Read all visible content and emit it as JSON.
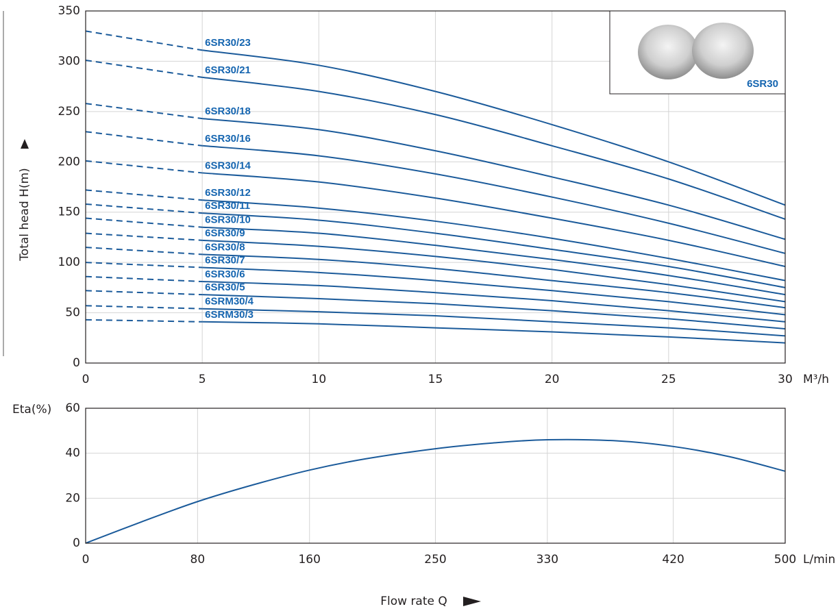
{
  "chart_data": [
    {
      "type": "line",
      "ylabel": "Total head H(m)",
      "xunit": "M³/h",
      "inset_label": "6SR30",
      "x": [
        0,
        5,
        10,
        15,
        20,
        25,
        30
      ],
      "xlim": [
        0,
        30
      ],
      "xticks": [
        0,
        5,
        10,
        15,
        20,
        25,
        30
      ],
      "ylim": [
        0,
        350
      ],
      "yticks": [
        0,
        50,
        100,
        150,
        200,
        250,
        300,
        350
      ],
      "grid": true,
      "series": [
        {
          "name": "6SR30/23",
          "color": "#1a5a9a",
          "values": [
            330,
            311,
            296,
            270,
            237,
            200,
            157
          ]
        },
        {
          "name": "6SR30/21",
          "color": "#1a5a9a",
          "values": [
            301,
            284,
            270,
            247,
            216,
            183,
            143
          ]
        },
        {
          "name": "6SR30/18",
          "color": "#1a5a9a",
          "values": [
            258,
            243,
            232,
            211,
            185,
            157,
            123
          ]
        },
        {
          "name": "6SR30/16",
          "color": "#1a5a9a",
          "values": [
            230,
            216,
            206,
            188,
            165,
            139,
            109
          ]
        },
        {
          "name": "6SR30/14",
          "color": "#1a5a9a",
          "values": [
            201,
            189,
            180,
            164,
            144,
            122,
            96
          ]
        },
        {
          "name": "6SR30/12",
          "color": "#1a5a9a",
          "values": [
            172,
            162,
            154,
            141,
            124,
            104,
            82
          ]
        },
        {
          "name": "6SR30/11",
          "color": "#1a5a9a",
          "values": [
            158,
            149,
            142,
            129,
            113,
            96,
            75
          ]
        },
        {
          "name": "6SR30/10",
          "color": "#1a5a9a",
          "values": [
            144,
            135,
            129,
            117,
            103,
            87,
            68
          ]
        },
        {
          "name": "6SR30/9",
          "color": "#1a5a9a",
          "values": [
            129,
            122,
            116,
            106,
            93,
            78,
            61
          ]
        },
        {
          "name": "6SR30/8",
          "color": "#1a5a9a",
          "values": [
            115,
            108,
            103,
            94,
            82,
            70,
            55
          ]
        },
        {
          "name": "6SR30/7",
          "color": "#1a5a9a",
          "values": [
            100,
            95,
            90,
            82,
            72,
            61,
            48
          ]
        },
        {
          "name": "6SR30/6",
          "color": "#1a5a9a",
          "values": [
            86,
            81,
            77,
            70,
            62,
            52,
            41
          ]
        },
        {
          "name": "6SR30/5",
          "color": "#1a5a9a",
          "values": [
            72,
            68,
            64,
            59,
            52,
            44,
            34
          ]
        },
        {
          "name": "6SRM30/4",
          "color": "#1a5a9a",
          "values": [
            57,
            54,
            51,
            47,
            41,
            35,
            27
          ]
        },
        {
          "name": "6SRM30/3",
          "color": "#1a5a9a",
          "values": [
            43,
            41,
            39,
            35,
            31,
            26,
            20
          ]
        }
      ]
    },
    {
      "type": "line",
      "ylabel": "Eta(%)",
      "xunit": "L/min",
      "xlabel": "Flow rate Q",
      "x": [
        0,
        40,
        80,
        120,
        160,
        200,
        250,
        290,
        330,
        380,
        420,
        460,
        500
      ],
      "values": [
        0,
        9.5,
        18.5,
        26,
        32.5,
        37.5,
        42,
        44.5,
        46,
        45.5,
        43,
        38.5,
        32
      ],
      "color": "#1a5a9a",
      "xlim": [
        0,
        500
      ],
      "xticks": [
        0,
        80,
        160,
        250,
        330,
        420,
        500
      ],
      "ylim": [
        0,
        60
      ],
      "yticks": [
        0,
        20,
        40,
        60
      ],
      "grid": true
    }
  ]
}
